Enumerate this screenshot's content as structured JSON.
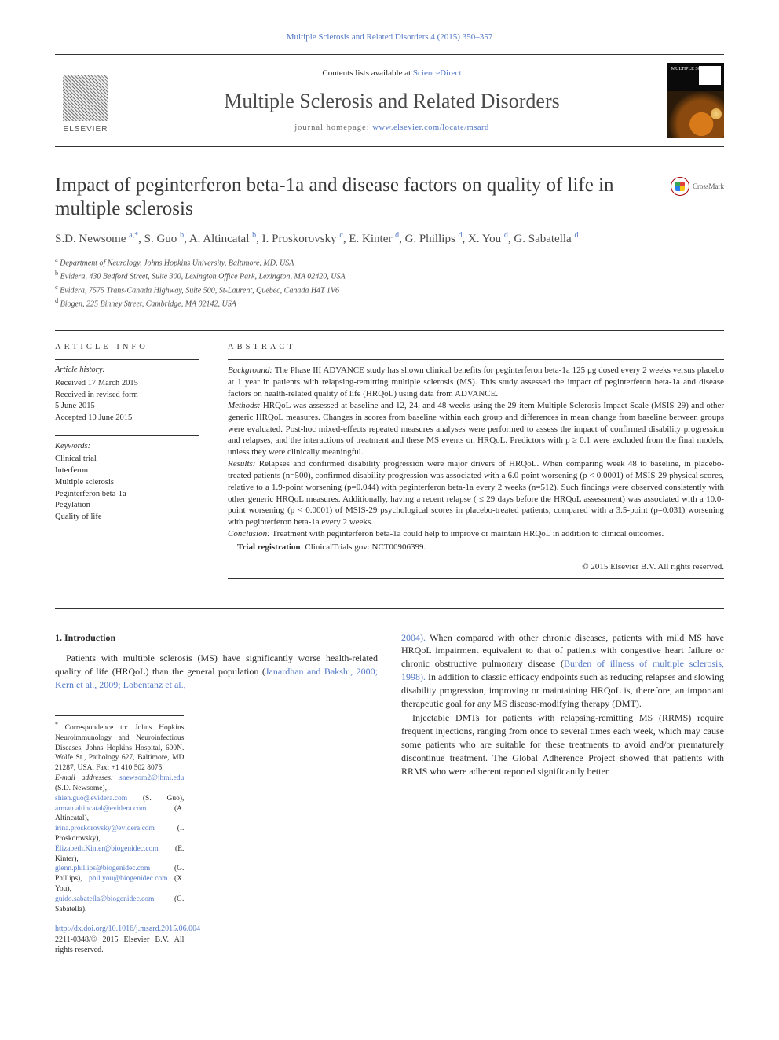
{
  "citation": {
    "text": "Multiple Sclerosis and Related Disorders 4 (2015) 350–357",
    "link_color": "#5277c4"
  },
  "header": {
    "contents_prefix": "Contents lists available at ",
    "contents_link": "ScienceDirect",
    "journal_name": "Multiple Sclerosis and Related Disorders",
    "homepage_prefix": "journal homepage: ",
    "homepage_url": "www.elsevier.com/locate/msard",
    "elsevier_label": "ELSEVIER",
    "cover_title": "MULTIPLE\nSCLEROSIS"
  },
  "article": {
    "title": "Impact of peginterferon beta-1a and disease factors on quality of life in multiple sclerosis",
    "crossmark_label": "CrossMark"
  },
  "authors_html": "S.D. Newsome <sup class='sup-link'>a,*</sup>, S. Guo <sup class='sup-link'>b</sup>, A. Altincatal <sup class='sup-link'>b</sup>, I. Proskorovsky <sup class='sup-link'>c</sup>, E. Kinter <sup class='sup-link'>d</sup>, G. Phillips <sup class='sup-link'>d</sup>, X. You <sup class='sup-link'>d</sup>, G. Sabatella <sup class='sup-link'>d</sup>",
  "affiliations": [
    {
      "sup": "a",
      "text": "Department of Neurology, Johns Hopkins University, Baltimore, MD, USA"
    },
    {
      "sup": "b",
      "text": "Evidera, 430 Bedford Street, Suite 300, Lexington Office Park, Lexington, MA 02420, USA"
    },
    {
      "sup": "c",
      "text": "Evidera, 7575 Trans-Canada Highway, Suite 500, St-Laurent, Quebec, Canada H4T 1V6"
    },
    {
      "sup": "d",
      "text": "Biogen, 225 Binney Street, Cambridge, MA 02142, USA"
    }
  ],
  "article_info": {
    "heading": "ARTICLE INFO",
    "history_label": "Article history:",
    "history_lines": [
      "Received 17 March 2015",
      "Received in revised form",
      "5 June 2015",
      "Accepted 10 June 2015"
    ],
    "keywords_label": "Keywords:",
    "keywords": [
      "Clinical trial",
      "Interferon",
      "Multiple sclerosis",
      "Peginterferon beta-1a",
      "Pegylation",
      "Quality of life"
    ]
  },
  "abstract": {
    "heading": "ABSTRACT",
    "paragraphs": [
      {
        "label": "Background:",
        "text": " The Phase III ADVANCE study has shown clinical benefits for peginterferon beta-1a 125 μg dosed every 2 weeks versus placebo at 1 year in patients with relapsing-remitting multiple sclerosis (MS). This study assessed the impact of peginterferon beta-1a and disease factors on health-related quality of life (HRQoL) using data from ADVANCE."
      },
      {
        "label": "Methods:",
        "text": " HRQoL was assessed at baseline and 12, 24, and 48 weeks using the 29-item Multiple Sclerosis Impact Scale (MSIS-29) and other generic HRQoL measures. Changes in scores from baseline within each group and differences in mean change from baseline between groups were evaluated. Post-hoc mixed-effects repeated measures analyses were performed to assess the impact of confirmed disability progression and relapses, and the interactions of treatment and these MS events on HRQoL. Predictors with p ≥ 0.1 were excluded from the final models, unless they were clinically meaningful."
      },
      {
        "label": "Results:",
        "text": " Relapses and confirmed disability progression were major drivers of HRQoL. When comparing week 48 to baseline, in placebo-treated patients (n=500), confirmed disability progression was associated with a 6.0-point worsening (p < 0.0001) of MSIS-29 physical scores, relative to a 1.9-point worsening (p=0.044) with peginterferon beta-1a every 2 weeks (n=512). Such findings were observed consistently with other generic HRQoL measures. Additionally, having a recent relapse ( ≤ 29 days before the HRQoL assessment) was associated with a 10.0-point worsening (p < 0.0001) of MSIS-29 psychological scores in placebo-treated patients, compared with a 3.5-point (p=0.031) worsening with peginterferon beta-1a every 2 weeks."
      },
      {
        "label": "Conclusion:",
        "text": " Treatment with peginterferon beta-1a could help to improve or maintain HRQoL in addition to clinical outcomes."
      }
    ],
    "trial_label": "Trial registration",
    "trial_text": ": ClinicalTrials.gov: NCT00906399.",
    "copyright": "© 2015 Elsevier B.V. All rights reserved."
  },
  "intro": {
    "heading": "1.  Introduction",
    "col1_p1_pre": "Patients with multiple sclerosis (MS) have significantly worse health-related quality of life (HRQoL) than the general population (",
    "col1_links": "Janardhan and Bakshi, 2000; Kern et al., 2009; Lobentanz et al.,",
    "col2_link1": "2004).",
    "col2_p1": " When compared with other chronic diseases, patients with mild MS have HRQoL impairment equivalent to that of patients with congestive heart failure or chronic obstructive pulmonary disease (",
    "col2_link2": "Burden of illness of multiple sclerosis, 1998).",
    "col2_p1_post": " In addition to classic efficacy endpoints such as reducing relapses and slowing disability progression, improving or maintaining HRQoL is, therefore, an important therapeutic goal for any MS disease-modifying therapy (DMT).",
    "col2_p2": "Injectable DMTs for patients with relapsing-remitting MS (RRMS) require frequent injections, ranging from once to several times each week, which may cause some patients who are suitable for these treatments to avoid and/or prematurely discontinue treatment. The Global Adherence Project showed that patients with RRMS who were adherent reported significantly better"
  },
  "footnotes": {
    "correspondence_marker": "*",
    "correspondence": "Correspondence to: Johns Hopkins Neuroimmunology and Neuroinfectious Diseases, Johns Hopkins Hospital, 600N. Wolfe St., Pathology 627, Baltimore, MD 21287, USA. Fax: +1 410 502 8075.",
    "email_label": "E-mail addresses:",
    "emails": [
      {
        "addr": "snewsom2@jhmi.edu",
        "who": " (S.D. Newsome),"
      },
      {
        "addr": "shien.guo@evidera.com",
        "who": " (S. Guo), "
      },
      {
        "addr": "arman.altincatal@evidera.com",
        "who": " (A. Altincatal),"
      },
      {
        "addr": "irina.proskorovsky@evidera.com",
        "who": " (I. Proskorovsky),"
      },
      {
        "addr": "Elizabeth.Kinter@biogenidec.com",
        "who": " (E. Kinter),"
      },
      {
        "addr": "glenn.phillips@biogenidec.com",
        "who": " (G. Phillips), "
      },
      {
        "addr": "phil.you@biogenidec.com",
        "who": " (X. You),"
      },
      {
        "addr": "guido.sabatella@biogenidec.com",
        "who": " (G. Sabatella)."
      }
    ],
    "doi": "http://dx.doi.org/10.1016/j.msard.2015.06.004",
    "issn_line": "2211-0348/© 2015 Elsevier B.V. All rights reserved."
  },
  "colors": {
    "link": "#5277c4",
    "text": "#2a2a2a",
    "rule": "#333333",
    "background": "#ffffff"
  },
  "typography": {
    "body_font": "Times New Roman / Georgia serif",
    "journal_name_size_pt": 26,
    "article_title_size_pt": 25,
    "body_size_pt": 12,
    "abstract_size_pt": 11,
    "footnote_size_pt": 9.5
  }
}
